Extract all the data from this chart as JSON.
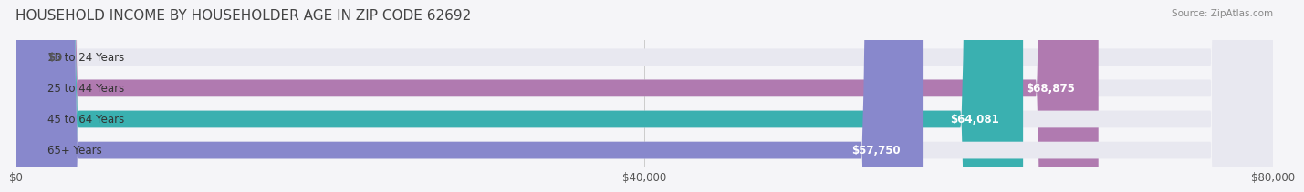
{
  "title": "HOUSEHOLD INCOME BY HOUSEHOLDER AGE IN ZIP CODE 62692",
  "source": "Source: ZipAtlas.com",
  "categories": [
    "15 to 24 Years",
    "25 to 44 Years",
    "45 to 64 Years",
    "65+ Years"
  ],
  "values": [
    0,
    68875,
    64081,
    57750
  ],
  "bar_colors": [
    "#a8c8e8",
    "#b07ab0",
    "#3ab0b0",
    "#8888cc"
  ],
  "bar_bg_color": "#e8e8f0",
  "xlim": [
    0,
    80000
  ],
  "xticks": [
    0,
    40000,
    80000
  ],
  "xtick_labels": [
    "$0",
    "$40,000",
    "$80,000"
  ],
  "value_labels": [
    "$0",
    "$68,875",
    "$64,081",
    "$57,750"
  ],
  "background_color": "#f5f5f8",
  "title_fontsize": 11,
  "label_fontsize": 8.5,
  "value_fontsize": 8.5,
  "bar_height": 0.55,
  "bar_label_color_inside": "#ffffff",
  "bar_label_color_outside": "#555555"
}
